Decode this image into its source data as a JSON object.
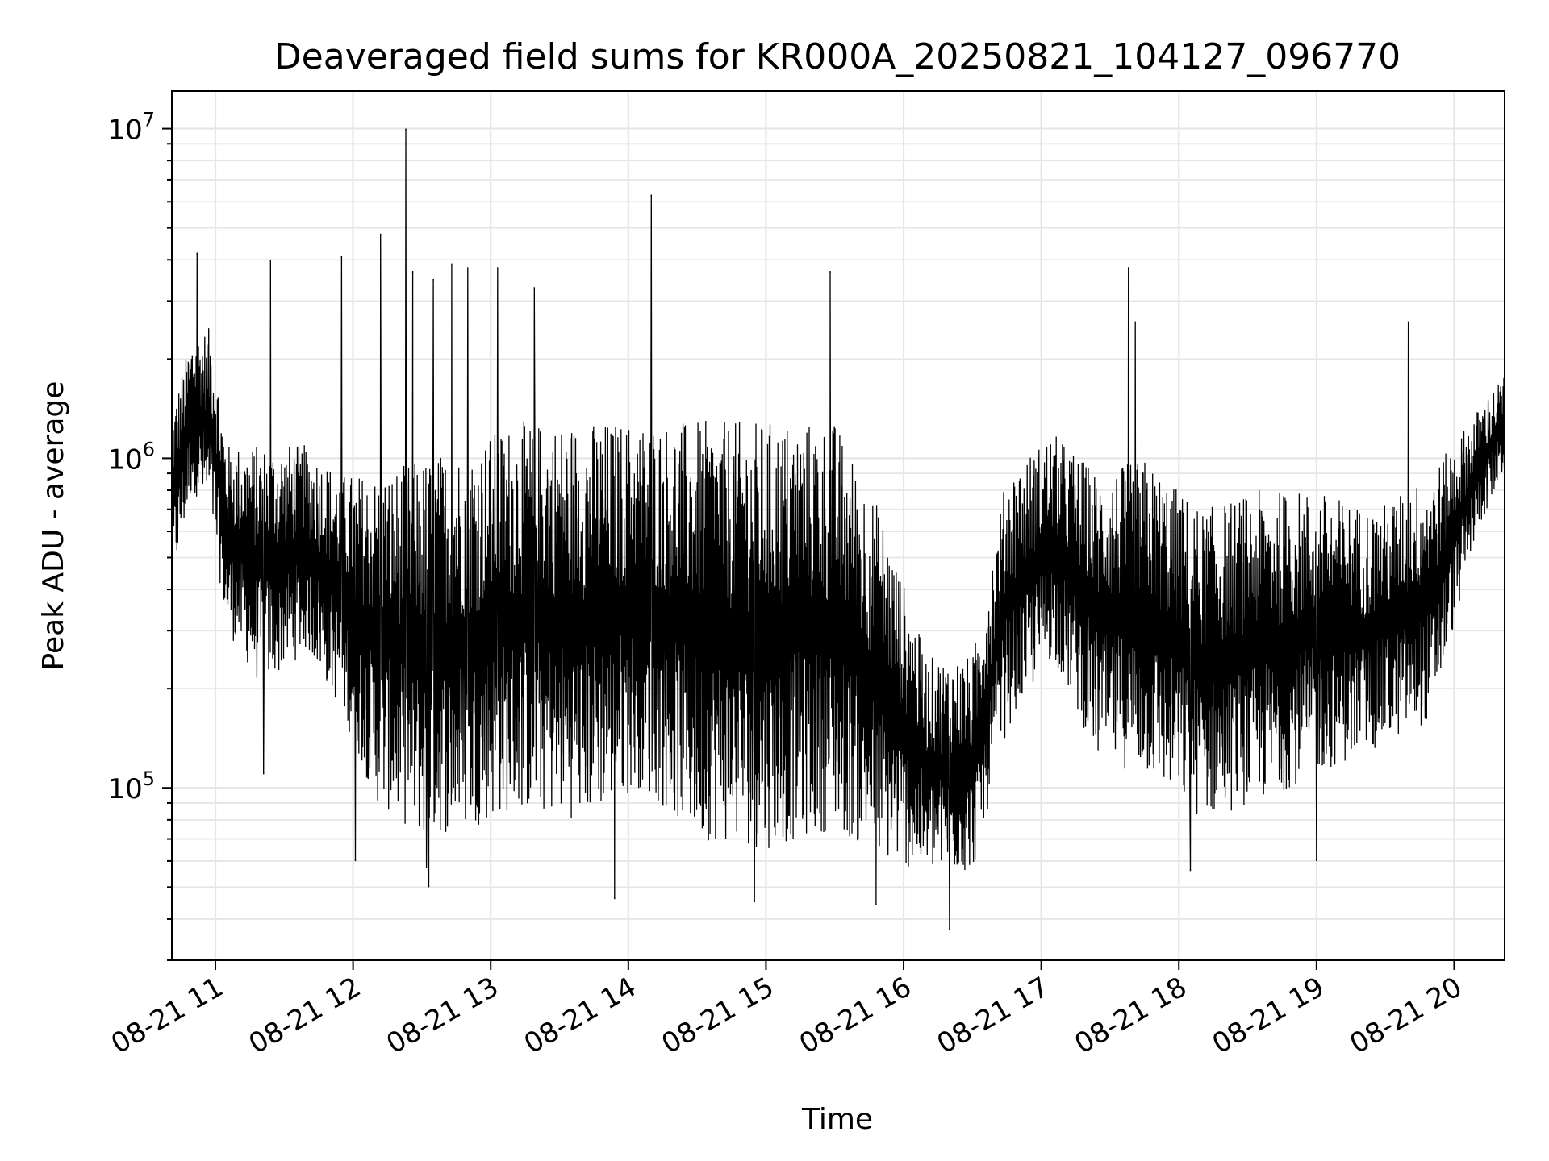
{
  "chart_data": {
    "type": "line",
    "title": "Deaveraged field sums for KR000A_20250821_104127_096770",
    "xlabel": "Time",
    "ylabel": "Peak ADU - average",
    "yscale": "log",
    "grid": true,
    "legend": "none",
    "line_color": "#000000",
    "xlim": [
      "2025-08-21 10:41",
      "2025-08-21 20:22"
    ],
    "ylim": [
      30000,
      13000000
    ],
    "x_ticks": [
      {
        "time": "2025-08-21 11:00",
        "label": "08-21 11"
      },
      {
        "time": "2025-08-21 12:00",
        "label": "08-21 12"
      },
      {
        "time": "2025-08-21 13:00",
        "label": "08-21 13"
      },
      {
        "time": "2025-08-21 14:00",
        "label": "08-21 14"
      },
      {
        "time": "2025-08-21 15:00",
        "label": "08-21 15"
      },
      {
        "time": "2025-08-21 16:00",
        "label": "08-21 16"
      },
      {
        "time": "2025-08-21 17:00",
        "label": "08-21 17"
      },
      {
        "time": "2025-08-21 18:00",
        "label": "08-21 18"
      },
      {
        "time": "2025-08-21 19:00",
        "label": "08-21 19"
      },
      {
        "time": "2025-08-21 20:00",
        "label": "08-21 20"
      }
    ],
    "y_ticks": [
      {
        "value": 100000,
        "base": "10",
        "exp": "5"
      },
      {
        "value": 1000000,
        "base": "10",
        "exp": "6"
      },
      {
        "value": 10000000,
        "base": "10",
        "exp": "7"
      }
    ],
    "series": [
      {
        "envelope": [
          {
            "time": "2025-08-21 10:41",
            "low": 400000,
            "high": 1400000
          },
          {
            "time": "2025-08-21 10:50",
            "low": 800000,
            "high": 2400000
          },
          {
            "time": "2025-08-21 10:58",
            "low": 650000,
            "high": 2500000
          },
          {
            "time": "2025-08-21 11:05",
            "low": 300000,
            "high": 1100000
          },
          {
            "time": "2025-08-21 11:20",
            "low": 200000,
            "high": 1100000
          },
          {
            "time": "2025-08-21 11:40",
            "low": 260000,
            "high": 1100000
          },
          {
            "time": "2025-08-21 11:55",
            "low": 170000,
            "high": 900000
          },
          {
            "time": "2025-08-21 12:10",
            "low": 90000,
            "high": 900000
          },
          {
            "time": "2025-08-21 12:30",
            "low": 70000,
            "high": 1000000
          },
          {
            "time": "2025-08-21 12:50",
            "low": 75000,
            "high": 1100000
          },
          {
            "time": "2025-08-21 13:10",
            "low": 85000,
            "high": 1300000
          },
          {
            "time": "2025-08-21 13:40",
            "low": 80000,
            "high": 1300000
          },
          {
            "time": "2025-08-21 14:05",
            "low": 100000,
            "high": 1300000
          },
          {
            "time": "2025-08-21 14:30",
            "low": 70000,
            "high": 1300000
          },
          {
            "time": "2025-08-21 15:00",
            "low": 65000,
            "high": 1300000
          },
          {
            "time": "2025-08-21 15:30",
            "low": 75000,
            "high": 1300000
          },
          {
            "time": "2025-08-21 15:50",
            "low": 60000,
            "high": 700000
          },
          {
            "time": "2025-08-21 16:10",
            "low": 55000,
            "high": 250000
          },
          {
            "time": "2025-08-21 16:30",
            "low": 55000,
            "high": 250000
          },
          {
            "time": "2025-08-21 16:45",
            "low": 150000,
            "high": 900000
          },
          {
            "time": "2025-08-21 17:05",
            "low": 250000,
            "high": 1200000
          },
          {
            "time": "2025-08-21 17:25",
            "low": 120000,
            "high": 900000
          },
          {
            "time": "2025-08-21 17:45",
            "low": 110000,
            "high": 1000000
          },
          {
            "time": "2025-08-21 18:10",
            "low": 80000,
            "high": 700000
          },
          {
            "time": "2025-08-21 18:35",
            "low": 90000,
            "high": 800000
          },
          {
            "time": "2025-08-21 19:00",
            "low": 110000,
            "high": 800000
          },
          {
            "time": "2025-08-21 19:25",
            "low": 130000,
            "high": 700000
          },
          {
            "time": "2025-08-21 19:50",
            "low": 160000,
            "high": 900000
          },
          {
            "time": "2025-08-21 20:10",
            "low": 600000,
            "high": 1400000
          },
          {
            "time": "2025-08-21 20:22",
            "low": 900000,
            "high": 1800000
          }
        ],
        "peaks": [
          {
            "time": "2025-08-21 10:52",
            "value": 4200000
          },
          {
            "time": "2025-08-21 11:24",
            "value": 4000000
          },
          {
            "time": "2025-08-21 11:55",
            "value": 4100000
          },
          {
            "time": "2025-08-21 12:12",
            "value": 4800000
          },
          {
            "time": "2025-08-21 12:23",
            "value": 10000000
          },
          {
            "time": "2025-08-21 12:26",
            "value": 3700000
          },
          {
            "time": "2025-08-21 12:35",
            "value": 3500000
          },
          {
            "time": "2025-08-21 12:43",
            "value": 3900000
          },
          {
            "time": "2025-08-21 12:50",
            "value": 3800000
          },
          {
            "time": "2025-08-21 13:03",
            "value": 3800000
          },
          {
            "time": "2025-08-21 13:19",
            "value": 3300000
          },
          {
            "time": "2025-08-21 14:10",
            "value": 6300000
          },
          {
            "time": "2025-08-21 15:28",
            "value": 3700000
          },
          {
            "time": "2025-08-21 17:38",
            "value": 3800000
          },
          {
            "time": "2025-08-21 17:41",
            "value": 2600000
          },
          {
            "time": "2025-08-21 19:40",
            "value": 2600000
          }
        ],
        "dips": [
          {
            "time": "2025-08-21 11:21",
            "value": 110000
          },
          {
            "time": "2025-08-21 12:01",
            "value": 60000
          },
          {
            "time": "2025-08-21 12:32",
            "value": 57000
          },
          {
            "time": "2025-08-21 12:33",
            "value": 50000
          },
          {
            "time": "2025-08-21 13:54",
            "value": 46000
          },
          {
            "time": "2025-08-21 14:55",
            "value": 45000
          },
          {
            "time": "2025-08-21 15:48",
            "value": 44000
          },
          {
            "time": "2025-08-21 16:20",
            "value": 37000
          },
          {
            "time": "2025-08-21 18:05",
            "value": 56000
          },
          {
            "time": "2025-08-21 19:00",
            "value": 60000
          }
        ]
      }
    ]
  }
}
